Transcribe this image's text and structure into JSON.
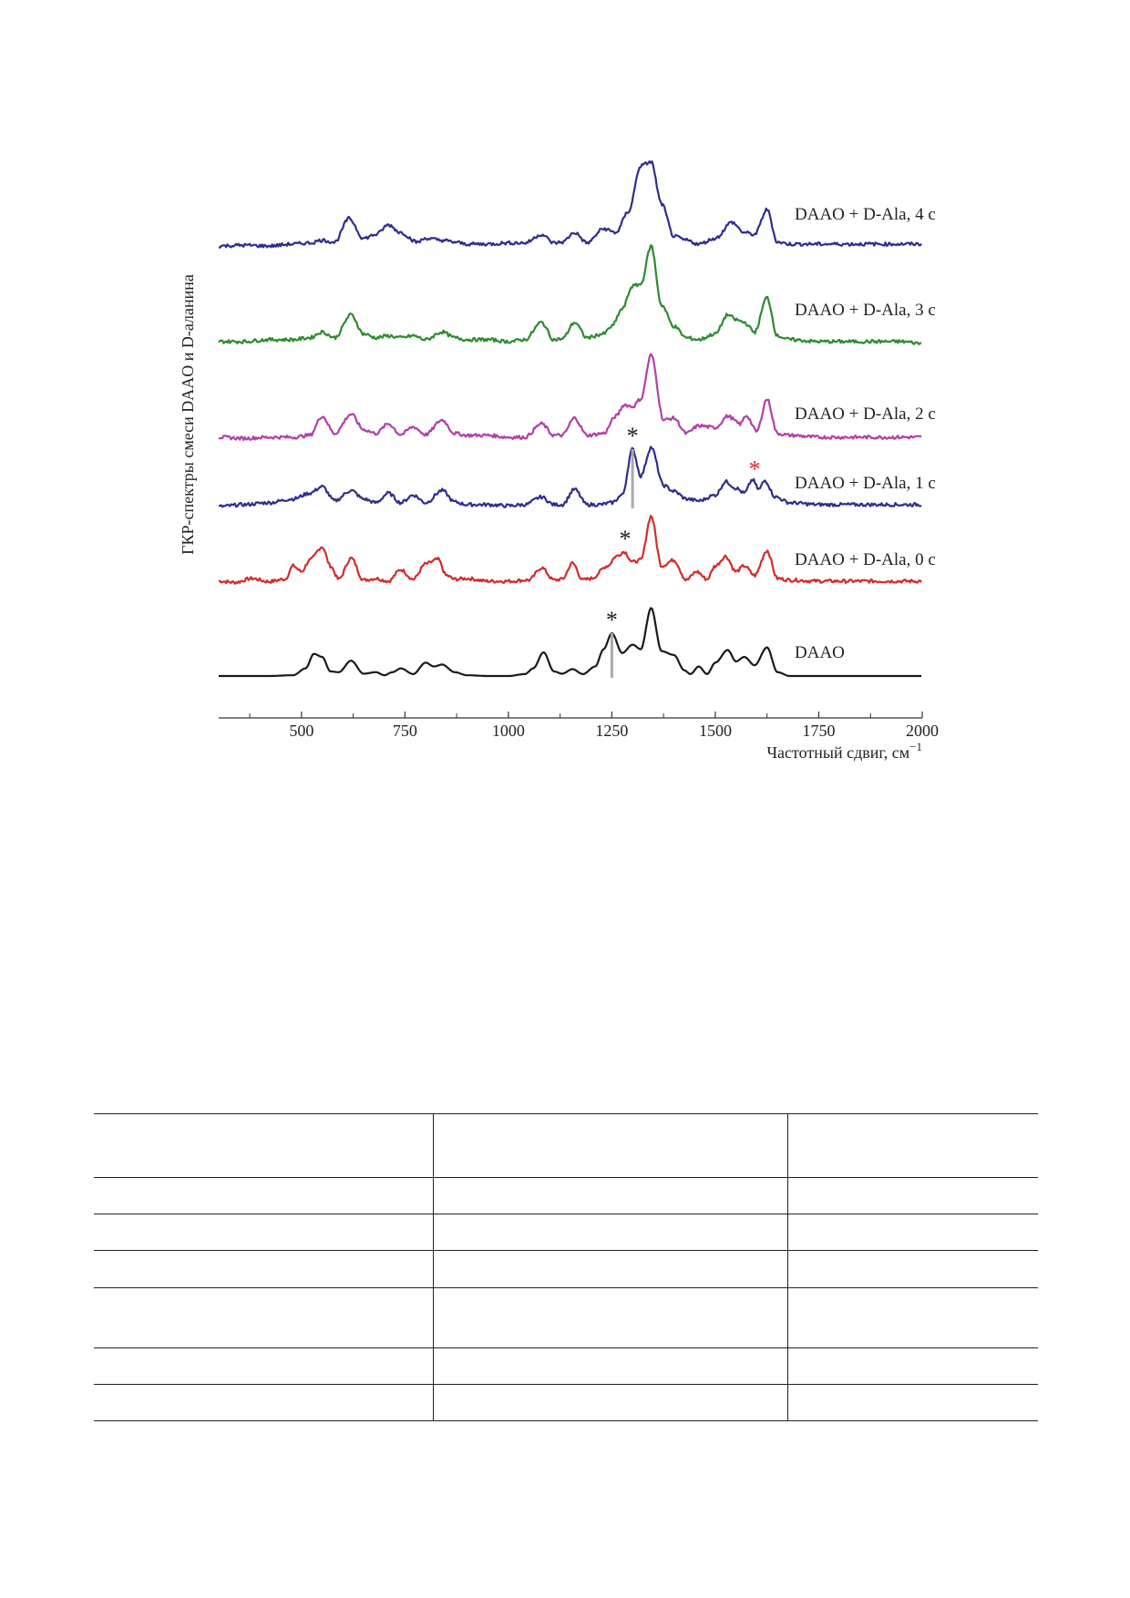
{
  "chart_data": {
    "type": "line",
    "xlabel": "Частотный сдвиг, см",
    "xlabel_sup": "−1",
    "ylabel": "ГКР-спектры смеси DAAO и D-аланина",
    "xlim": [
      300,
      2000
    ],
    "x_ticks": [
      500,
      750,
      1000,
      1250,
      1500,
      1750,
      2000
    ],
    "x_minor_ticks": [
      375,
      625,
      875,
      1125,
      1375,
      1625,
      1875
    ],
    "units": "arbitrary (stacked intensity)",
    "grid": false,
    "legend": "labels placed at right end of each trace",
    "series": [
      {
        "name": "DAAO",
        "color": "#1a1a1a",
        "baseline": 0,
        "x": [
          300,
          360,
          420,
          480,
          510,
          530,
          550,
          570,
          590,
          620,
          650,
          680,
          700,
          720,
          740,
          770,
          800,
          820,
          840,
          870,
          900,
          950,
          1000,
          1040,
          1060,
          1085,
          1110,
          1130,
          1155,
          1180,
          1210,
          1230,
          1250,
          1275,
          1300,
          1320,
          1345,
          1370,
          1400,
          1425,
          1440,
          1460,
          1480,
          1500,
          1530,
          1550,
          1570,
          1595,
          1625,
          1650,
          1680,
          1750,
          1850,
          1950,
          2000
        ],
        "y": [
          0.0,
          0.0,
          0.0,
          0.02,
          0.2,
          0.58,
          0.5,
          0.12,
          0.1,
          0.4,
          0.06,
          0.1,
          0.02,
          0.1,
          0.2,
          0.05,
          0.35,
          0.25,
          0.3,
          0.1,
          0.02,
          0.0,
          0.0,
          0.05,
          0.2,
          0.62,
          0.12,
          0.06,
          0.18,
          0.05,
          0.25,
          0.7,
          1.12,
          0.6,
          0.82,
          0.7,
          1.78,
          0.65,
          0.55,
          0.15,
          0.05,
          0.25,
          0.05,
          0.35,
          0.68,
          0.38,
          0.5,
          0.28,
          0.75,
          0.1,
          0.0,
          0.0,
          0.0,
          0.0,
          0.0
        ]
      },
      {
        "name": "DAAO + D-Ala, 0 с",
        "color": "#d42a2a",
        "baseline": 1,
        "x": [
          300,
          340,
          380,
          420,
          460,
          480,
          500,
          520,
          550,
          570,
          590,
          620,
          650,
          680,
          710,
          740,
          770,
          800,
          830,
          850,
          870,
          900,
          950,
          1000,
          1050,
          1080,
          1110,
          1130,
          1155,
          1180,
          1200,
          1240,
          1260,
          1280,
          1300,
          1320,
          1345,
          1370,
          1400,
          1430,
          1455,
          1480,
          1500,
          1525,
          1550,
          1570,
          1595,
          1625,
          1650,
          1680,
          1750,
          1850,
          1950,
          2000
        ],
        "y": [
          0.05,
          0.02,
          0.12,
          0.04,
          0.1,
          0.45,
          0.3,
          0.6,
          0.95,
          0.45,
          0.1,
          0.65,
          0.08,
          0.12,
          0.05,
          0.35,
          0.1,
          0.5,
          0.62,
          0.2,
          0.1,
          0.12,
          0.05,
          0.05,
          0.08,
          0.4,
          0.08,
          0.1,
          0.52,
          0.08,
          0.12,
          0.45,
          0.7,
          0.82,
          0.55,
          0.6,
          1.75,
          0.45,
          0.6,
          0.08,
          0.3,
          0.1,
          0.45,
          0.7,
          0.3,
          0.45,
          0.2,
          0.85,
          0.12,
          0.08,
          0.05,
          0.05,
          0.05,
          0.05
        ]
      },
      {
        "name": "DAAO + D-Ala, 1 с",
        "color": "#2e2e8c",
        "baseline": 2,
        "x": [
          300,
          360,
          420,
          480,
          520,
          550,
          580,
          620,
          650,
          680,
          710,
          740,
          770,
          800,
          840,
          870,
          900,
          950,
          1000,
          1040,
          1080,
          1110,
          1130,
          1160,
          1190,
          1220,
          1250,
          1275,
          1300,
          1320,
          1345,
          1375,
          1400,
          1430,
          1460,
          1500,
          1525,
          1550,
          1570,
          1590,
          1605,
          1620,
          1645,
          1680,
          1750,
          1850,
          1950,
          2000
        ],
        "y": [
          0.0,
          0.05,
          0.1,
          0.2,
          0.35,
          0.52,
          0.15,
          0.42,
          0.2,
          0.1,
          0.35,
          0.1,
          0.3,
          0.1,
          0.42,
          0.12,
          0.05,
          0.05,
          0.02,
          0.05,
          0.25,
          0.05,
          0.05,
          0.45,
          0.05,
          0.05,
          0.1,
          0.3,
          1.5,
          0.8,
          1.55,
          0.55,
          0.4,
          0.2,
          0.15,
          0.3,
          0.65,
          0.48,
          0.35,
          0.7,
          0.45,
          0.68,
          0.25,
          0.1,
          0.05,
          0.05,
          0.05,
          0.05
        ]
      },
      {
        "name": "DAAO + D-Ala, 2 с",
        "color": "#b040a8",
        "baseline": 3,
        "x": [
          300,
          360,
          420,
          480,
          520,
          550,
          580,
          620,
          650,
          680,
          710,
          740,
          770,
          800,
          840,
          870,
          900,
          950,
          1000,
          1040,
          1080,
          1110,
          1130,
          1160,
          1190,
          1230,
          1260,
          1280,
          1300,
          1320,
          1345,
          1375,
          1400,
          1430,
          1460,
          1500,
          1530,
          1560,
          1575,
          1600,
          1625,
          1650,
          1680,
          1750,
          1850,
          1950,
          2000
        ],
        "y": [
          0.05,
          0.02,
          0.05,
          0.05,
          0.1,
          0.6,
          0.15,
          0.65,
          0.25,
          0.15,
          0.4,
          0.12,
          0.32,
          0.12,
          0.5,
          0.15,
          0.1,
          0.1,
          0.05,
          0.05,
          0.4,
          0.1,
          0.1,
          0.55,
          0.1,
          0.15,
          0.6,
          0.9,
          0.85,
          1.05,
          2.2,
          0.5,
          0.55,
          0.15,
          0.35,
          0.3,
          0.6,
          0.4,
          0.62,
          0.2,
          1.05,
          0.15,
          0.1,
          0.05,
          0.05,
          0.05,
          0.05
        ]
      },
      {
        "name": "DAAO + D-Ala, 3 с",
        "color": "#2e8a2e",
        "baseline": 4,
        "x": [
          300,
          360,
          420,
          480,
          520,
          550,
          580,
          620,
          650,
          680,
          710,
          740,
          770,
          800,
          840,
          870,
          900,
          950,
          1000,
          1040,
          1080,
          1110,
          1130,
          1160,
          1190,
          1230,
          1250,
          1275,
          1300,
          1320,
          1345,
          1370,
          1400,
          1430,
          1460,
          1500,
          1530,
          1550,
          1570,
          1595,
          1625,
          1650,
          1680,
          1750,
          1850,
          1950,
          2000
        ],
        "y": [
          0.05,
          0.05,
          0.1,
          0.1,
          0.15,
          0.3,
          0.15,
          0.75,
          0.25,
          0.15,
          0.2,
          0.15,
          0.2,
          0.1,
          0.3,
          0.15,
          0.1,
          0.1,
          0.05,
          0.1,
          0.55,
          0.1,
          0.12,
          0.55,
          0.15,
          0.25,
          0.45,
          0.9,
          1.5,
          1.55,
          2.55,
          1.0,
          0.45,
          0.15,
          0.1,
          0.25,
          0.75,
          0.62,
          0.55,
          0.3,
          1.2,
          0.2,
          0.1,
          0.05,
          0.05,
          0.05,
          0.0
        ]
      },
      {
        "name": "DAAO + D-Ala, 4 с",
        "color": "#2e2e8c",
        "baseline": 5,
        "x": [
          300,
          360,
          420,
          480,
          520,
          550,
          580,
          615,
          650,
          680,
          710,
          740,
          780,
          800,
          840,
          870,
          900,
          950,
          1000,
          1040,
          1080,
          1110,
          1130,
          1160,
          1190,
          1230,
          1260,
          1290,
          1320,
          1345,
          1370,
          1400,
          1430,
          1460,
          1500,
          1540,
          1570,
          1595,
          1625,
          1650,
          1680,
          1750,
          1850,
          1950,
          2000
        ],
        "y": [
          0.0,
          0.02,
          0.0,
          0.05,
          0.08,
          0.15,
          0.1,
          0.72,
          0.2,
          0.3,
          0.55,
          0.35,
          0.1,
          0.2,
          0.15,
          0.1,
          0.05,
          0.05,
          0.08,
          0.08,
          0.3,
          0.08,
          0.1,
          0.35,
          0.08,
          0.45,
          0.35,
          0.9,
          2.1,
          2.2,
          1.1,
          0.25,
          0.15,
          0.05,
          0.2,
          0.62,
          0.35,
          0.3,
          0.95,
          0.1,
          0.05,
          0.05,
          0.05,
          0.05,
          0.05
        ]
      }
    ],
    "annotations": [
      {
        "text": "*",
        "x": 1250,
        "series": "DAAO",
        "color": "#1a1a1a",
        "line": true
      },
      {
        "text": "*",
        "x": 1282,
        "series": "DAAO + D-Ala, 0 с",
        "color": "#1a1a1a",
        "line": false
      },
      {
        "text": "*",
        "x": 1300,
        "series": "DAAO + D-Ala, 1 с",
        "color": "#1a1a1a",
        "line": true
      },
      {
        "text": "*",
        "x": 1595,
        "series": "DAAO + D-Ala, 1 с",
        "color": "#d42a2a",
        "line": false
      }
    ]
  },
  "empty_table": {
    "rows": 7,
    "columns": 3
  }
}
